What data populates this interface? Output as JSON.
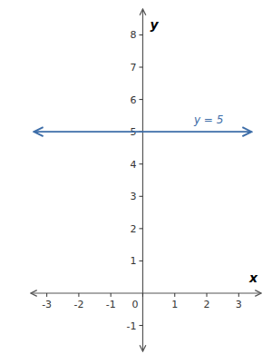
{
  "chart_data": {
    "type": "line",
    "xlabel": "x",
    "ylabel": "y",
    "xlim": [
      -3.5,
      3.7
    ],
    "ylim": [
      -1.8,
      8.8
    ],
    "xticks": [
      -3,
      -2,
      -1,
      0,
      1,
      2,
      3
    ],
    "yticks": [
      -1,
      1,
      2,
      3,
      4,
      5,
      6,
      7,
      8
    ],
    "grid": false,
    "series": [
      {
        "x": [
          -3.4,
          3.4
        ],
        "values": [
          5,
          5
        ],
        "color": "#3d6da8"
      }
    ],
    "annotations": [
      {
        "text": "y = 5",
        "x": 1.6,
        "y": 5.25,
        "color": "#3d6da8"
      }
    ]
  }
}
